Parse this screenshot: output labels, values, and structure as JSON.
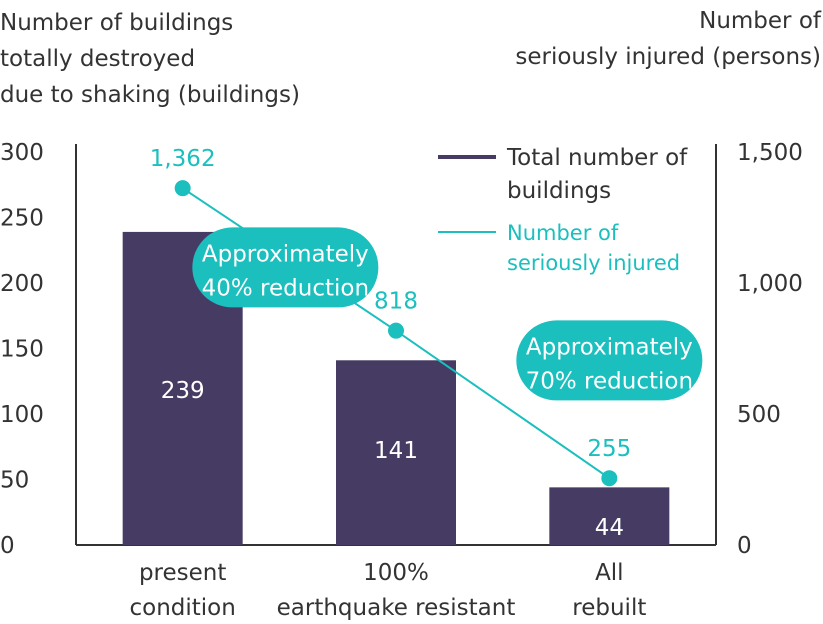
{
  "colors": {
    "bar": "#463b63",
    "line": "#1abfbe",
    "callout": "#1abfbe",
    "axis": "#333333"
  },
  "chart_data": {
    "type": "bar+line",
    "categories": [
      [
        "present",
        "condition"
      ],
      [
        "100%",
        "earthquake resistant"
      ],
      [
        "All",
        "rebuilt"
      ]
    ],
    "series": [
      {
        "name": "Total number of buildings",
        "type": "bar",
        "axis": "left",
        "values": [
          239,
          141,
          44
        ],
        "labels": [
          "239",
          "141",
          "44"
        ]
      },
      {
        "name": "Number of seriously injured",
        "type": "line",
        "axis": "right",
        "values": [
          1362,
          818,
          255
        ],
        "labels": [
          "1,362",
          "818",
          "255"
        ]
      }
    ],
    "ylabel_left": [
      "Number of buildings",
      "totally destroyed",
      "due to shaking (buildings)"
    ],
    "ylabel_right": [
      "Number of",
      "seriously injured (persons)"
    ],
    "ylim_left": [
      0,
      300
    ],
    "ylim_right": [
      0,
      1500
    ],
    "yticks_left": [
      "0",
      "50",
      "100",
      "150",
      "200",
      "250",
      "300"
    ],
    "yticks_right": [
      "0",
      "500",
      "1,000",
      "1,500"
    ],
    "legend": {
      "placement": "top-right",
      "items": [
        {
          "lines": [
            "Total number of",
            "buildings"
          ],
          "series": 0
        },
        {
          "lines": [
            "Number of",
            "seriously injured"
          ],
          "series": 1
        }
      ]
    },
    "annotations": [
      {
        "lines": [
          "Approximately",
          "40% reduction"
        ]
      },
      {
        "lines": [
          "Approximately",
          "70% reduction"
        ]
      }
    ]
  }
}
